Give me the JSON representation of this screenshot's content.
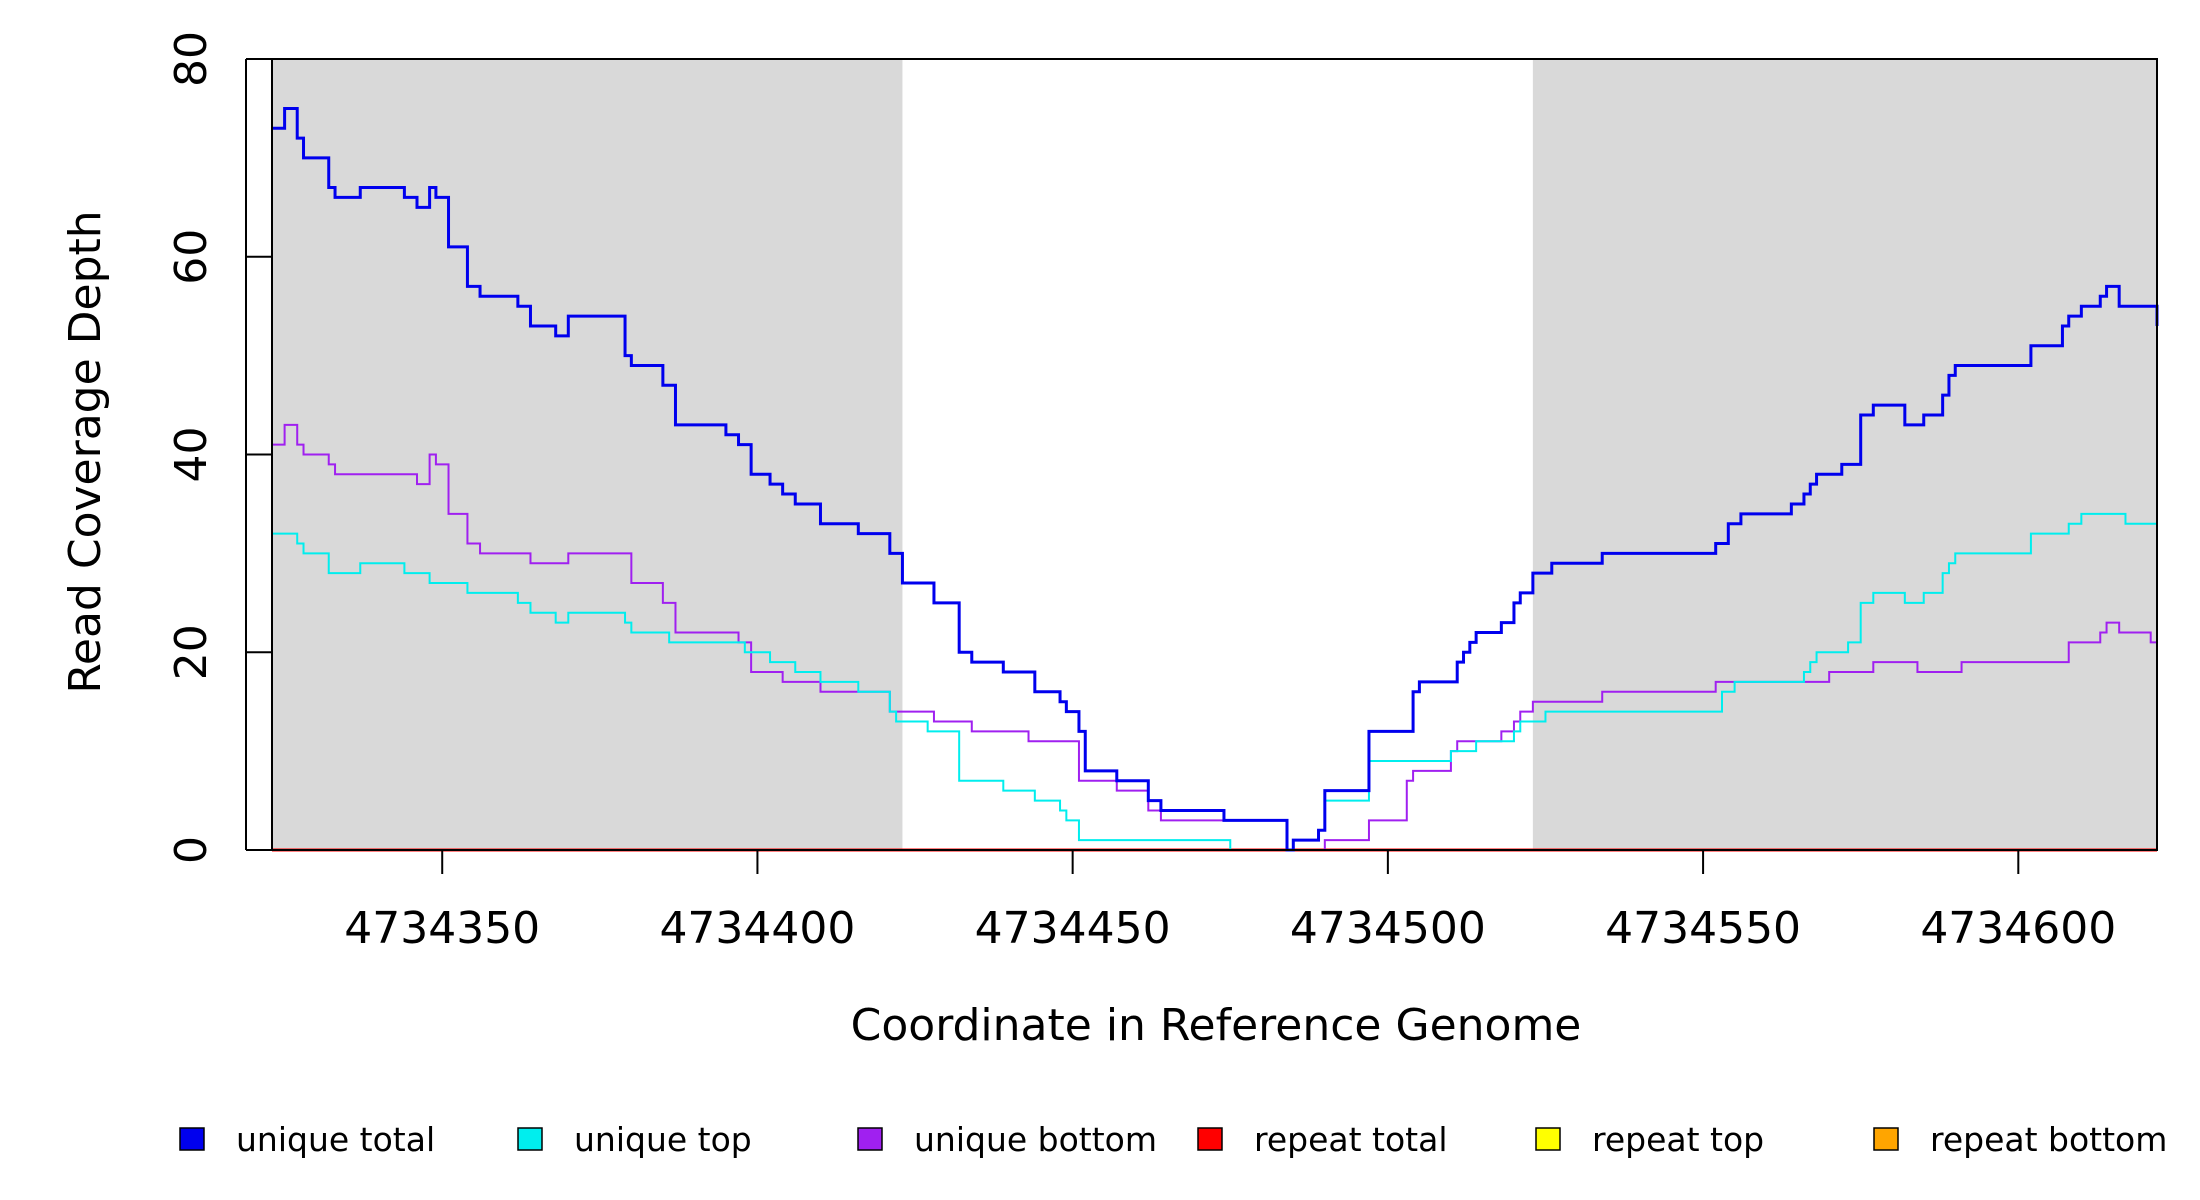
{
  "chart_data": {
    "type": "line",
    "xlabel": "Coordinate in Reference Genome",
    "ylabel": "Read Coverage Depth",
    "xlim": [
      4734323,
      4734622
    ],
    "ylim": [
      0,
      80
    ],
    "x_ticks": [
      4734350,
      4734400,
      4734450,
      4734500,
      4734550,
      4734600
    ],
    "y_ticks": [
      0,
      20,
      40,
      60,
      80
    ],
    "shaded_regions": [
      {
        "from": 4734323,
        "to": 4734423,
        "color": "#d9d9d9"
      },
      {
        "from": 4734523,
        "to": 4734622,
        "color": "#d9d9d9"
      }
    ],
    "legend_position": "bottom",
    "series": [
      {
        "name": "unique total",
        "color": "#0000ee",
        "points": [
          [
            4734323,
            73
          ],
          [
            4734325,
            75
          ],
          [
            4734327,
            72
          ],
          [
            4734328,
            70
          ],
          [
            4734332,
            67
          ],
          [
            4734333,
            66
          ],
          [
            4734337,
            67
          ],
          [
            4734344,
            66
          ],
          [
            4734346,
            65
          ],
          [
            4734348,
            67
          ],
          [
            4734349,
            66
          ],
          [
            4734351,
            61
          ],
          [
            4734354,
            57
          ],
          [
            4734356,
            56
          ],
          [
            4734362,
            55
          ],
          [
            4734364,
            53
          ],
          [
            4734368,
            52
          ],
          [
            4734370,
            54
          ],
          [
            4734379,
            50
          ],
          [
            4734380,
            49
          ],
          [
            4734385,
            47
          ],
          [
            4734387,
            43
          ],
          [
            4734395,
            42
          ],
          [
            4734397,
            41
          ],
          [
            4734399,
            38
          ],
          [
            4734402,
            37
          ],
          [
            4734404,
            36
          ],
          [
            4734406,
            35
          ],
          [
            4734410,
            33
          ],
          [
            4734416,
            32
          ],
          [
            4734421,
            30
          ],
          [
            4734423,
            27
          ],
          [
            4734428,
            25
          ],
          [
            4734432,
            20
          ],
          [
            4734434,
            19
          ],
          [
            4734439,
            18
          ],
          [
            4734444,
            16
          ],
          [
            4734448,
            15
          ],
          [
            4734449,
            14
          ],
          [
            4734451,
            12
          ],
          [
            4734452,
            8
          ],
          [
            4734457,
            7
          ],
          [
            4734462,
            5
          ],
          [
            4734464,
            4
          ],
          [
            4734474,
            3
          ],
          [
            4734484,
            0
          ],
          [
            4734485,
            1
          ],
          [
            4734489,
            2
          ],
          [
            4734490,
            6
          ],
          [
            4734497,
            12
          ],
          [
            4734504,
            16
          ],
          [
            4734505,
            17
          ],
          [
            4734511,
            19
          ],
          [
            4734512,
            20
          ],
          [
            4734513,
            21
          ],
          [
            4734514,
            22
          ],
          [
            4734518,
            23
          ],
          [
            4734520,
            25
          ],
          [
            4734521,
            26
          ],
          [
            4734523,
            28
          ],
          [
            4734526,
            29
          ],
          [
            4734534,
            30
          ],
          [
            4734552,
            31
          ],
          [
            4734554,
            33
          ],
          [
            4734556,
            34
          ],
          [
            4734564,
            35
          ],
          [
            4734566,
            36
          ],
          [
            4734567,
            37
          ],
          [
            4734568,
            38
          ],
          [
            4734572,
            39
          ],
          [
            4734575,
            44
          ],
          [
            4734577,
            45
          ],
          [
            4734582,
            43
          ],
          [
            4734585,
            44
          ],
          [
            4734588,
            46
          ],
          [
            4734589,
            48
          ],
          [
            4734590,
            49
          ],
          [
            4734602,
            51
          ],
          [
            4734607,
            53
          ],
          [
            4734608,
            54
          ],
          [
            4734610,
            55
          ],
          [
            4734613,
            56
          ],
          [
            4734614,
            57
          ],
          [
            4734616,
            55
          ],
          [
            4734622,
            53
          ]
        ]
      },
      {
        "name": "unique top",
        "color": "#00eeee",
        "points": [
          [
            4734323,
            32
          ],
          [
            4734327,
            31
          ],
          [
            4734328,
            30
          ],
          [
            4734332,
            28
          ],
          [
            4734337,
            29
          ],
          [
            4734344,
            28
          ],
          [
            4734348,
            27
          ],
          [
            4734354,
            26
          ],
          [
            4734362,
            25
          ],
          [
            4734364,
            24
          ],
          [
            4734368,
            23
          ],
          [
            4734370,
            24
          ],
          [
            4734379,
            23
          ],
          [
            4734380,
            22
          ],
          [
            4734386,
            21
          ],
          [
            4734398,
            20
          ],
          [
            4734400,
            20
          ],
          [
            4734402,
            19
          ],
          [
            4734406,
            18
          ],
          [
            4734410,
            17
          ],
          [
            4734416,
            16
          ],
          [
            4734421,
            14
          ],
          [
            4734422,
            13
          ],
          [
            4734427,
            12
          ],
          [
            4734432,
            7
          ],
          [
            4734439,
            6
          ],
          [
            4734444,
            5
          ],
          [
            4734448,
            4
          ],
          [
            4734449,
            3
          ],
          [
            4734451,
            1
          ],
          [
            4734475,
            0
          ],
          [
            4734484,
            0
          ],
          [
            4734485,
            1
          ],
          [
            4734489,
            2
          ],
          [
            4734490,
            5
          ],
          [
            4734497,
            9
          ],
          [
            4734510,
            10
          ],
          [
            4734514,
            11
          ],
          [
            4734520,
            12
          ],
          [
            4734521,
            13
          ],
          [
            4734523,
            13
          ],
          [
            4734525,
            14
          ],
          [
            4734553,
            16
          ],
          [
            4734555,
            17
          ],
          [
            4734566,
            18
          ],
          [
            4734567,
            19
          ],
          [
            4734568,
            20
          ],
          [
            4734573,
            21
          ],
          [
            4734575,
            25
          ],
          [
            4734577,
            26
          ],
          [
            4734582,
            25
          ],
          [
            4734585,
            26
          ],
          [
            4734588,
            28
          ],
          [
            4734589,
            29
          ],
          [
            4734590,
            30
          ],
          [
            4734602,
            32
          ],
          [
            4734608,
            33
          ],
          [
            4734610,
            34
          ],
          [
            4734617,
            33
          ],
          [
            4734622,
            34
          ]
        ]
      },
      {
        "name": "unique bottom",
        "color": "#a020f0",
        "points": [
          [
            4734323,
            41
          ],
          [
            4734325,
            43
          ],
          [
            4734327,
            41
          ],
          [
            4734328,
            40
          ],
          [
            4734332,
            39
          ],
          [
            4734333,
            38
          ],
          [
            4734346,
            37
          ],
          [
            4734348,
            40
          ],
          [
            4734349,
            39
          ],
          [
            4734351,
            34
          ],
          [
            4734354,
            31
          ],
          [
            4734356,
            30
          ],
          [
            4734364,
            29
          ],
          [
            4734370,
            30
          ],
          [
            4734380,
            27
          ],
          [
            4734385,
            25
          ],
          [
            4734387,
            22
          ],
          [
            4734395,
            22
          ],
          [
            4734397,
            21
          ],
          [
            4734399,
            18
          ],
          [
            4734404,
            17
          ],
          [
            4734410,
            16
          ],
          [
            4734421,
            14
          ],
          [
            4734428,
            13
          ],
          [
            4734434,
            12
          ],
          [
            4734443,
            11
          ],
          [
            4734451,
            7
          ],
          [
            4734457,
            6
          ],
          [
            4734462,
            4
          ],
          [
            4734464,
            3
          ],
          [
            4734474,
            3
          ],
          [
            4734484,
            0
          ],
          [
            4734490,
            1
          ],
          [
            4734497,
            3
          ],
          [
            4734503,
            7
          ],
          [
            4734504,
            8
          ],
          [
            4734510,
            10
          ],
          [
            4734511,
            11
          ],
          [
            4734518,
            12
          ],
          [
            4734520,
            13
          ],
          [
            4734521,
            14
          ],
          [
            4734523,
            15
          ],
          [
            4734534,
            16
          ],
          [
            4734552,
            17
          ],
          [
            4734570,
            18
          ],
          [
            4734577,
            19
          ],
          [
            4734584,
            18
          ],
          [
            4734591,
            19
          ],
          [
            4734608,
            21
          ],
          [
            4734613,
            22
          ],
          [
            4734614,
            23
          ],
          [
            4734616,
            22
          ],
          [
            4734621,
            21
          ]
        ]
      },
      {
        "name": "repeat total",
        "color": "#ff0000",
        "points": [
          [
            4734323,
            0
          ],
          [
            4734622,
            0
          ]
        ]
      },
      {
        "name": "repeat top",
        "color": "#ffff00",
        "points": [
          [
            4734323,
            0
          ],
          [
            4734622,
            0
          ]
        ]
      },
      {
        "name": "repeat bottom",
        "color": "#ffa500",
        "points": [
          [
            4734323,
            0
          ],
          [
            4734622,
            0
          ]
        ]
      }
    ]
  }
}
